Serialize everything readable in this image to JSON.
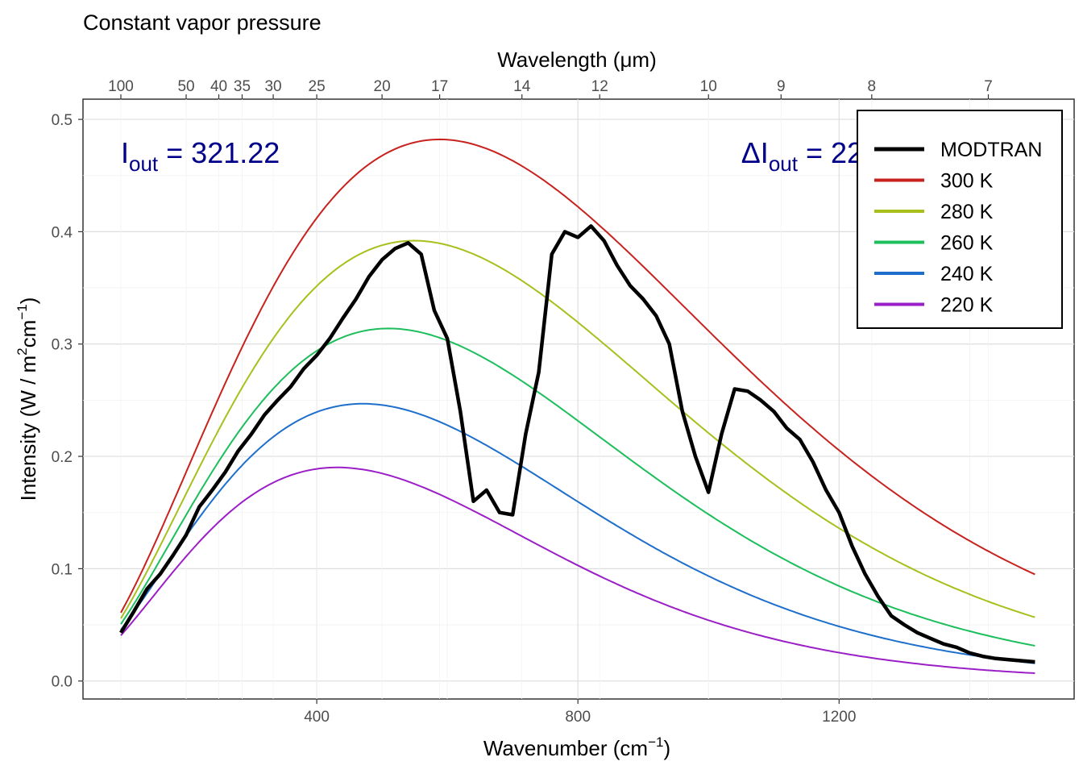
{
  "chart_data": {
    "type": "line",
    "title": "Constant vapor pressure",
    "xlabel": "Wavenumber (cm",
    "xlabel_sup": "−1",
    "xlabel_close": ")",
    "ylabel": "Intensity (W / m",
    "ylabel_sup1": "2",
    "ylabel_mid": "cm",
    "ylabel_sup2": "−1",
    "ylabel_close": ")",
    "top_axis_label": "Wavelength (μm)",
    "xlim": [
      100,
      1500
    ],
    "ylim": [
      0,
      0.5
    ],
    "x_ticks": [
      400,
      800,
      1200
    ],
    "y_ticks": [
      0.0,
      0.1,
      0.2,
      0.3,
      0.4,
      0.5
    ],
    "y_tick_labels": [
      "0.0",
      "0.1",
      "0.2",
      "0.3",
      "0.4",
      "0.5"
    ],
    "top_ticks": [
      100,
      50,
      40,
      35,
      30,
      25,
      20,
      17,
      14,
      12,
      10,
      9,
      8,
      7
    ],
    "grid": true,
    "legend_position": "top-right",
    "annotations": [
      {
        "main": "I",
        "sub": "out",
        "eq": " = 321.22",
        "x": 100,
        "y": 0.47,
        "color": "#00008B"
      },
      {
        "main": "ΔI",
        "sub": "out",
        "eq": " = 22.7",
        "x": 1050,
        "y": 0.47,
        "color": "#00008B"
      }
    ],
    "series": [
      {
        "name": "MODTRAN",
        "color": "#000000",
        "style": "thick",
        "x": [
          100,
          120,
          140,
          160,
          180,
          200,
          220,
          240,
          260,
          280,
          300,
          320,
          340,
          360,
          380,
          400,
          420,
          440,
          460,
          480,
          500,
          520,
          540,
          560,
          580,
          600,
          620,
          640,
          660,
          680,
          700,
          720,
          740,
          760,
          780,
          800,
          820,
          840,
          860,
          880,
          900,
          920,
          940,
          960,
          980,
          1000,
          1020,
          1040,
          1060,
          1080,
          1100,
          1120,
          1140,
          1160,
          1180,
          1200,
          1220,
          1240,
          1260,
          1280,
          1300,
          1320,
          1340,
          1360,
          1380,
          1400,
          1420,
          1440,
          1460,
          1480,
          1500
        ],
        "y": [
          0.043,
          0.062,
          0.082,
          0.095,
          0.112,
          0.13,
          0.155,
          0.17,
          0.186,
          0.205,
          0.22,
          0.237,
          0.25,
          0.262,
          0.278,
          0.29,
          0.305,
          0.323,
          0.34,
          0.36,
          0.375,
          0.385,
          0.39,
          0.38,
          0.33,
          0.305,
          0.24,
          0.16,
          0.17,
          0.15,
          0.148,
          0.22,
          0.275,
          0.38,
          0.4,
          0.395,
          0.405,
          0.392,
          0.37,
          0.352,
          0.34,
          0.325,
          0.3,
          0.24,
          0.2,
          0.168,
          0.22,
          0.26,
          0.258,
          0.25,
          0.24,
          0.225,
          0.215,
          0.195,
          0.17,
          0.15,
          0.12,
          0.095,
          0.075,
          0.058,
          0.05,
          0.043,
          0.038,
          0.033,
          0.03,
          0.025,
          0.022,
          0.02,
          0.019,
          0.018,
          0.017
        ]
      },
      {
        "name": "300 K",
        "color": "#C8221F",
        "T": 300
      },
      {
        "name": "280 K",
        "color": "#A9BF1C",
        "T": 280
      },
      {
        "name": "260 K",
        "color": "#1DBE5C",
        "T": 260
      },
      {
        "name": "240 K",
        "color": "#1E6FCC",
        "T": 240
      },
      {
        "name": "220 K",
        "color": "#9B1FC7",
        "T": 220
      }
    ]
  }
}
